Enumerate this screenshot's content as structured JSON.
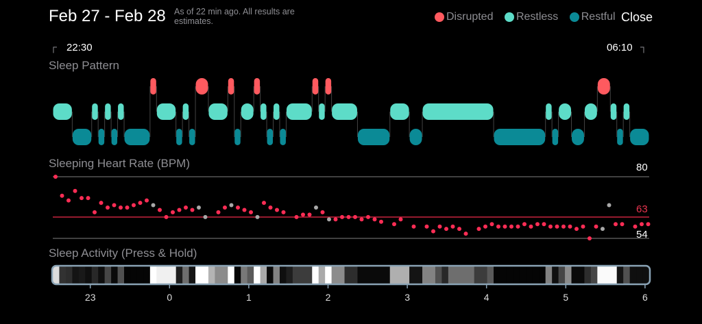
{
  "header": {
    "title": "Feb 27 - Feb 28",
    "subtitle": "As of 22 min ago. All results are estimates.",
    "legend": [
      {
        "label": "Disrupted",
        "color": "#ff5a5f"
      },
      {
        "label": "Restless",
        "color": "#5ddcc8"
      },
      {
        "label": "Restful",
        "color": "#0b8a96"
      }
    ],
    "close_label": "Close"
  },
  "range": {
    "start": "22:30",
    "end": "06:10",
    "start_icon": "corner-bracket-left-icon",
    "end_icon": "corner-bracket-right-icon"
  },
  "sleep_pattern": {
    "title": "Sleep Pattern",
    "colors": {
      "disrupted": "#ff5a5f",
      "restless": "#5ddcc8",
      "restful": "#0b8a96"
    },
    "segments": [
      [
        "restless",
        "22:30",
        "22:45"
      ],
      [
        "restful",
        "22:45",
        "23:00"
      ],
      [
        "restless",
        "23:00",
        "23:05"
      ],
      [
        "restful",
        "23:05",
        "23:10"
      ],
      [
        "restless",
        "23:10",
        "23:15"
      ],
      [
        "restful",
        "23:15",
        "23:20"
      ],
      [
        "restless",
        "23:20",
        "23:25"
      ],
      [
        "restful",
        "23:25",
        "23:45"
      ],
      [
        "disrupted",
        "23:45",
        "23:50"
      ],
      [
        "restless",
        "23:50",
        "00:05"
      ],
      [
        "restful",
        "00:05",
        "00:10"
      ],
      [
        "restless",
        "00:10",
        "00:15"
      ],
      [
        "restful",
        "00:15",
        "00:20"
      ],
      [
        "disrupted",
        "00:20",
        "00:30"
      ],
      [
        "restless",
        "00:30",
        "00:45"
      ],
      [
        "disrupted",
        "00:45",
        "00:50"
      ],
      [
        "restful",
        "00:50",
        "00:55"
      ],
      [
        "restless",
        "00:55",
        "01:05"
      ],
      [
        "disrupted",
        "01:05",
        "01:10"
      ],
      [
        "restless",
        "01:10",
        "01:15"
      ],
      [
        "restful",
        "01:15",
        "01:20"
      ],
      [
        "restless",
        "01:20",
        "01:25"
      ],
      [
        "restful",
        "01:25",
        "01:30"
      ],
      [
        "restless",
        "01:30",
        "01:50"
      ],
      [
        "disrupted",
        "01:50",
        "01:55"
      ],
      [
        "restless",
        "01:55",
        "02:00"
      ],
      [
        "disrupted",
        "02:00",
        "02:05"
      ],
      [
        "restless",
        "02:05",
        "02:25"
      ],
      [
        "restful",
        "02:25",
        "02:50"
      ],
      [
        "restless",
        "02:50",
        "03:05"
      ],
      [
        "restful",
        "03:05",
        "03:15"
      ],
      [
        "restless",
        "03:15",
        "04:10"
      ],
      [
        "restful",
        "04:10",
        "04:50"
      ],
      [
        "restless",
        "04:50",
        "04:55"
      ],
      [
        "restful",
        "04:55",
        "05:00"
      ],
      [
        "restless",
        "05:00",
        "05:10"
      ],
      [
        "restful",
        "05:10",
        "05:20"
      ],
      [
        "restless",
        "05:20",
        "05:30"
      ],
      [
        "disrupted",
        "05:30",
        "05:40"
      ],
      [
        "restless",
        "05:40",
        "05:45"
      ],
      [
        "restful",
        "05:45",
        "05:50"
      ],
      [
        "restless",
        "05:50",
        "05:55"
      ],
      [
        "restful",
        "05:55",
        "06:10"
      ]
    ]
  },
  "heart_rate": {
    "title": "Sleeping Heart Rate (BPM)",
    "max_label": "80",
    "avg_label": "63",
    "min_label": "54",
    "colors": {
      "point": "#ff2d55",
      "muted_point": "#a8a8a8",
      "avg_line": "#c8243f",
      "ref_line": "#555555"
    },
    "chart_data": {
      "type": "scatter",
      "ylim": [
        54,
        80
      ],
      "reference_lines": [
        80,
        63,
        54
      ],
      "points": [
        [
          "22:30",
          80,
          0
        ],
        [
          "22:35",
          72,
          0
        ],
        [
          "22:40",
          70,
          0
        ],
        [
          "22:45",
          74,
          0
        ],
        [
          "22:50",
          71,
          0
        ],
        [
          "22:55",
          71,
          0
        ],
        [
          "23:00",
          65,
          0
        ],
        [
          "23:05",
          69,
          0
        ],
        [
          "23:10",
          67,
          0
        ],
        [
          "23:15",
          68,
          0
        ],
        [
          "23:20",
          67,
          0
        ],
        [
          "23:25",
          67,
          0
        ],
        [
          "23:30",
          68,
          0
        ],
        [
          "23:35",
          69,
          0
        ],
        [
          "23:40",
          70,
          0
        ],
        [
          "23:45",
          68,
          1
        ],
        [
          "23:50",
          66,
          0
        ],
        [
          "23:55",
          63,
          0
        ],
        [
          "00:00",
          65,
          0
        ],
        [
          "00:05",
          66,
          0
        ],
        [
          "00:10",
          67,
          0
        ],
        [
          "00:15",
          66,
          0
        ],
        [
          "00:20",
          67,
          1
        ],
        [
          "00:25",
          63,
          1
        ],
        [
          "00:35",
          65,
          0
        ],
        [
          "00:40",
          67,
          0
        ],
        [
          "00:45",
          68,
          1
        ],
        [
          "00:50",
          67,
          0
        ],
        [
          "00:55",
          66,
          0
        ],
        [
          "01:00",
          65,
          0
        ],
        [
          "01:05",
          63,
          1
        ],
        [
          "01:10",
          69,
          0
        ],
        [
          "01:15",
          67,
          0
        ],
        [
          "01:20",
          66,
          0
        ],
        [
          "01:25",
          65,
          0
        ],
        [
          "01:35",
          63,
          0
        ],
        [
          "01:40",
          64,
          0
        ],
        [
          "01:45",
          64,
          0
        ],
        [
          "01:50",
          67,
          1
        ],
        [
          "01:55",
          65,
          0
        ],
        [
          "02:00",
          62,
          1
        ],
        [
          "02:05",
          62,
          0
        ],
        [
          "02:10",
          63,
          0
        ],
        [
          "02:15",
          63,
          0
        ],
        [
          "02:20",
          63,
          0
        ],
        [
          "02:25",
          62,
          0
        ],
        [
          "02:30",
          63,
          0
        ],
        [
          "02:35",
          62,
          0
        ],
        [
          "02:40",
          61,
          0
        ],
        [
          "02:50",
          60,
          0
        ],
        [
          "02:55",
          62,
          0
        ],
        [
          "03:05",
          59,
          0
        ],
        [
          "03:15",
          59,
          0
        ],
        [
          "03:20",
          57,
          0
        ],
        [
          "03:25",
          59,
          0
        ],
        [
          "03:30",
          58,
          0
        ],
        [
          "03:35",
          59,
          0
        ],
        [
          "03:40",
          58,
          0
        ],
        [
          "03:45",
          56,
          0
        ],
        [
          "03:55",
          58,
          0
        ],
        [
          "04:00",
          59,
          0
        ],
        [
          "04:05",
          60,
          0
        ],
        [
          "04:10",
          59,
          0
        ],
        [
          "04:15",
          59,
          0
        ],
        [
          "04:20",
          59,
          0
        ],
        [
          "04:25",
          59,
          0
        ],
        [
          "04:30",
          60,
          0
        ],
        [
          "04:35",
          59,
          0
        ],
        [
          "04:40",
          60,
          0
        ],
        [
          "04:45",
          60,
          0
        ],
        [
          "04:50",
          59,
          0
        ],
        [
          "04:55",
          59,
          0
        ],
        [
          "05:00",
          59,
          0
        ],
        [
          "05:05",
          59,
          0
        ],
        [
          "05:10",
          58,
          0
        ],
        [
          "05:15",
          59,
          0
        ],
        [
          "05:20",
          54,
          0
        ],
        [
          "05:25",
          59,
          0
        ],
        [
          "05:30",
          58,
          1
        ],
        [
          "05:35",
          68,
          1
        ],
        [
          "05:40",
          60,
          0
        ],
        [
          "05:45",
          60,
          0
        ],
        [
          "05:55",
          59,
          0
        ],
        [
          "06:00",
          60,
          0
        ],
        [
          "06:05",
          60,
          0
        ]
      ]
    }
  },
  "sleep_activity": {
    "title": "Sleep Activity (Press & Hold)",
    "border_color": "#8aa3b5",
    "levels": [
      220,
      50,
      45,
      20,
      25,
      15,
      40,
      15,
      70,
      10,
      80,
      5,
      5,
      5,
      5,
      255,
      240,
      240,
      240,
      30,
      110,
      20,
      255,
      255,
      180,
      140,
      140,
      255,
      5,
      120,
      90,
      255,
      170,
      10,
      130,
      15,
      30,
      60,
      60,
      60,
      255,
      170,
      255,
      140,
      140,
      45,
      45,
      10,
      10,
      10,
      10,
      10,
      175,
      175,
      175,
      20,
      20,
      130,
      130,
      80,
      40,
      110,
      110,
      110,
      110,
      60,
      60,
      90,
      5,
      5,
      5,
      5,
      5,
      5,
      5,
      5,
      130,
      15,
      70,
      140,
      10,
      10,
      45,
      70,
      250,
      250,
      250,
      20,
      80,
      15,
      15,
      15
    ],
    "hour_labels": [
      "23",
      "0",
      "1",
      "2",
      "3",
      "4",
      "5",
      "6"
    ]
  }
}
